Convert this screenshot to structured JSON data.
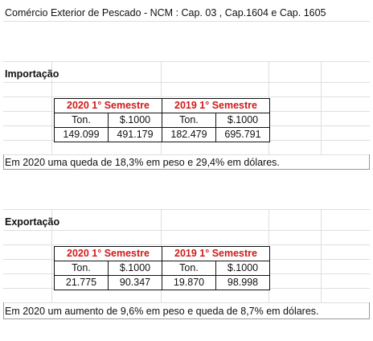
{
  "title": "Comércio Exterior de Pescado - NCM : Cap. 03 , Cap.1604 e Cap. 1605",
  "import": {
    "heading": "Importação",
    "period_2020": "2020 1° Semestre",
    "period_2019": "2019 1° Semestre",
    "unit_ton": "Ton.",
    "unit_value": "$.1000",
    "ton_2020": "149.099",
    "value_2020": "491.179",
    "ton_2019": "182.479",
    "value_2019": "695.791",
    "summary": "Em 2020 uma queda de 18,3% em peso e 29,4% em dólares."
  },
  "export": {
    "heading": "Exportação",
    "period_2020": "2020 1° Semestre",
    "period_2019": "2019 1° Semestre",
    "unit_ton": "Ton.",
    "unit_value": "$.1000",
    "ton_2020": "21.775",
    "value_2020": "90.347",
    "ton_2019": "19.870",
    "value_2019": "98.998",
    "summary": "Em 2020 um aumento de 9,6% em peso e queda de 8,7% em dólares."
  }
}
